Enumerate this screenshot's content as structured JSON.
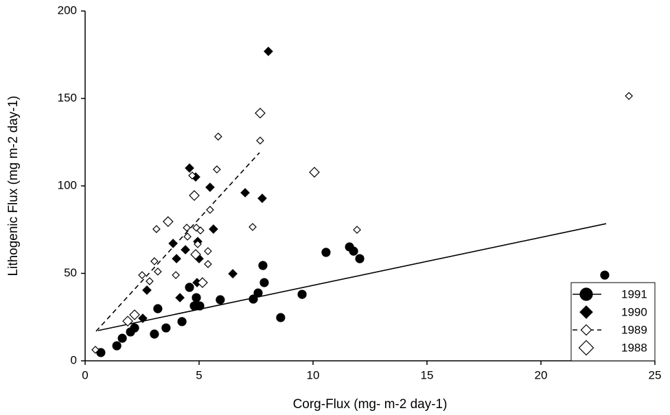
{
  "chart_data": {
    "type": "scatter",
    "xlabel": "Corg-Flux (mg- m-2 day-1)",
    "ylabel": "Lithogenic Flux (mg m-2 day-1)",
    "xlim": [
      0,
      25
    ],
    "xticks": [
      0,
      5,
      10,
      15,
      20,
      25
    ],
    "ylim": [
      0,
      200
    ],
    "yticks": [
      0,
      50,
      100,
      150,
      200
    ],
    "legend": "lower right",
    "series": [
      {
        "name": "1991",
        "color": "#000000",
        "marker": "circle",
        "filled": true,
        "size": 6,
        "x": [
          0.69,
          1.39,
          1.63,
          1.99,
          2.17,
          3.04,
          3.19,
          3.55,
          4.25,
          4.58,
          4.79,
          4.88,
          5.03,
          5.93,
          7.38,
          7.59,
          7.8,
          7.86,
          8.58,
          9.52,
          10.57,
          11.6,
          11.78,
          12.05,
          22.8
        ],
        "values": [
          4.7,
          8.6,
          12.9,
          16.5,
          18.8,
          15.3,
          29.8,
          18.8,
          22.4,
          42.0,
          31.4,
          36.1,
          31.4,
          34.9,
          35.3,
          38.8,
          54.5,
          44.7,
          24.7,
          38.0,
          62.0,
          65.1,
          62.7,
          58.4,
          49.0
        ],
        "fit": {
          "line_style": "solid",
          "x": [
            0.57,
            22.86
          ],
          "values": [
            17.3,
            78.4
          ]
        }
      },
      {
        "name": "1990",
        "color": "#000000",
        "marker": "diamond",
        "filled": true,
        "size": 6,
        "x": [
          2.53,
          2.71,
          3.86,
          4.01,
          4.16,
          4.4,
          4.58,
          4.85,
          4.91,
          4.94,
          5.0,
          5.48,
          5.63,
          6.48,
          7.02,
          7.77,
          8.04
        ],
        "values": [
          24.3,
          40.4,
          67.1,
          58.4,
          36.1,
          63.5,
          110.2,
          105.1,
          44.7,
          68.2,
          58.4,
          99.2,
          75.3,
          49.8,
          96.1,
          92.9,
          176.9
        ]
      },
      {
        "name": "1989",
        "color": "#000000",
        "marker": "diamond",
        "filled": false,
        "size": 5,
        "x": [
          0.45,
          2.5,
          2.83,
          3.13,
          3.19,
          3.04,
          3.98,
          4.46,
          4.49,
          4.7,
          4.88,
          4.94,
          5.06,
          5.39,
          5.39,
          5.48,
          5.84,
          5.78,
          7.35,
          7.68,
          11.93,
          23.86
        ],
        "values": [
          6.3,
          49.0,
          45.5,
          75.3,
          51.0,
          56.9,
          49.0,
          76.1,
          71.0,
          105.9,
          76.1,
          66.7,
          74.5,
          55.3,
          62.7,
          86.3,
          128.2,
          109.4,
          76.5,
          125.9,
          74.9,
          151.4
        ],
        "fit": {
          "line_style": "dashed",
          "x": [
            0.48,
            7.65
          ],
          "values": [
            16.9,
            119.0
          ]
        }
      },
      {
        "name": "1988",
        "color": "#000000",
        "marker": "diamond",
        "filled": false,
        "size": 7,
        "x": [
          1.87,
          2.17,
          3.64,
          4.79,
          4.85,
          5.15,
          7.68,
          10.06
        ],
        "values": [
          22.7,
          26.3,
          79.6,
          94.5,
          60.8,
          44.7,
          141.6,
          107.8
        ]
      }
    ]
  }
}
